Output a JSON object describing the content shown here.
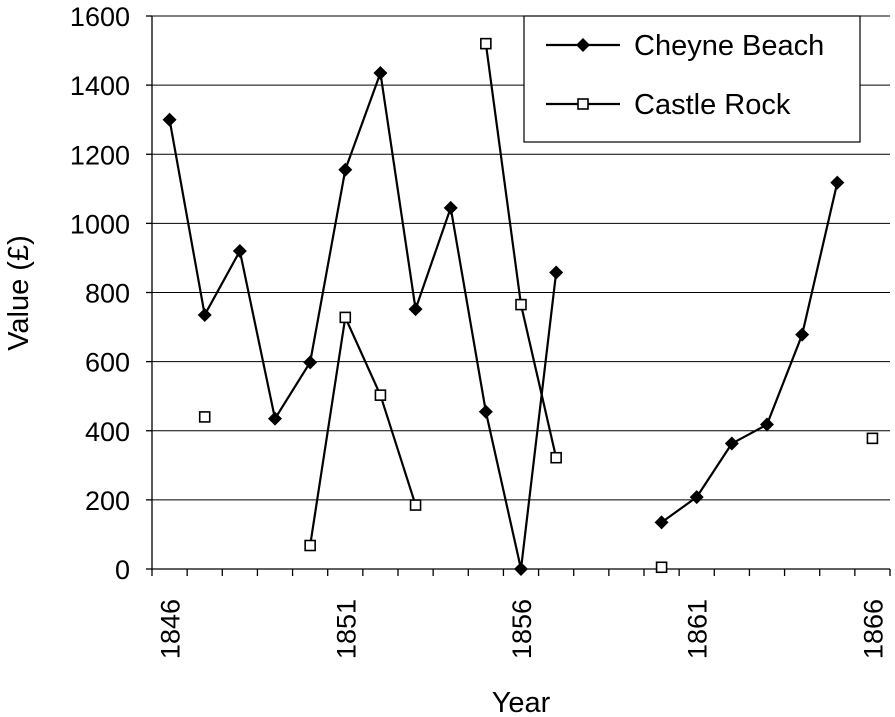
{
  "chart_data": {
    "type": "line",
    "title": "",
    "xlabel": "Year",
    "ylabel": "Value (£)",
    "xlim": [
      1845.5,
      1866.5
    ],
    "ylim": [
      0,
      1600
    ],
    "y_ticks": [
      "0",
      "200",
      "400",
      "600",
      "800",
      "1000",
      "1200",
      "1400",
      "1600"
    ],
    "x_tick_labels": [
      "1846",
      "1851",
      "1856",
      "1861",
      "1866"
    ],
    "grid": "horizontal",
    "legend_position": "top-right",
    "series": [
      {
        "name": "Cheyne Beach",
        "marker": "filled-diamond",
        "color": "#000000",
        "points": [
          {
            "x": 1846,
            "y": 1300
          },
          {
            "x": 1847,
            "y": 735
          },
          {
            "x": 1848,
            "y": 920
          },
          {
            "x": 1849,
            "y": 435
          },
          {
            "x": 1850,
            "y": 598
          },
          {
            "x": 1851,
            "y": 1155
          },
          {
            "x": 1852,
            "y": 1435
          },
          {
            "x": 1853,
            "y": 752
          },
          {
            "x": 1854,
            "y": 1045
          },
          {
            "x": 1855,
            "y": 455
          },
          {
            "x": 1856,
            "y": 0
          },
          {
            "x": 1857,
            "y": 858
          },
          {
            "x": 1858,
            "y": null
          },
          {
            "x": 1859,
            "y": null
          },
          {
            "x": 1860,
            "y": 135
          },
          {
            "x": 1861,
            "y": 208
          },
          {
            "x": 1862,
            "y": 363
          },
          {
            "x": 1863,
            "y": 418
          },
          {
            "x": 1864,
            "y": 678
          },
          {
            "x": 1865,
            "y": 1118
          }
        ]
      },
      {
        "name": "Castle Rock",
        "marker": "open-square",
        "color": "#000000",
        "points": [
          {
            "x": 1847,
            "y": 440
          },
          {
            "x": 1848,
            "y": null
          },
          {
            "x": 1849,
            "y": null
          },
          {
            "x": 1850,
            "y": 68
          },
          {
            "x": 1851,
            "y": 728
          },
          {
            "x": 1852,
            "y": 503
          },
          {
            "x": 1853,
            "y": 185
          },
          {
            "x": 1854,
            "y": null
          },
          {
            "x": 1855,
            "y": 1520
          },
          {
            "x": 1856,
            "y": 765
          },
          {
            "x": 1857,
            "y": 322
          },
          {
            "x": 1858,
            "y": null
          },
          {
            "x": 1859,
            "y": null
          },
          {
            "x": 1860,
            "y": 5
          },
          {
            "x": 1861,
            "y": null
          },
          {
            "x": 1862,
            "y": null
          },
          {
            "x": 1863,
            "y": null
          },
          {
            "x": 1864,
            "y": null
          },
          {
            "x": 1865,
            "y": null
          },
          {
            "x": 1866,
            "y": 378
          }
        ]
      }
    ]
  }
}
